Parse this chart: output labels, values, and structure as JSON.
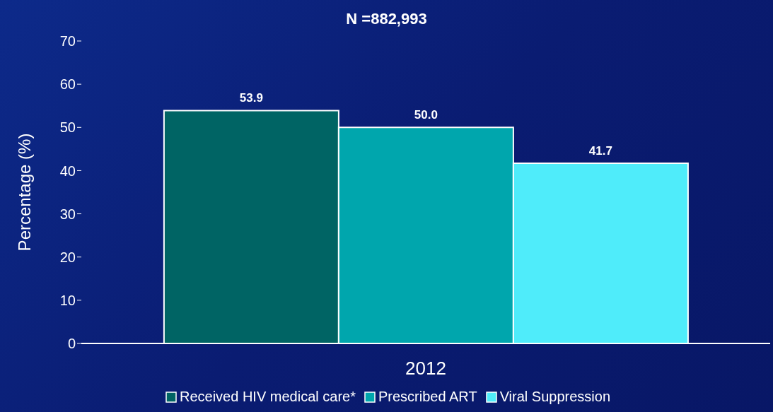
{
  "chart_data": {
    "type": "bar",
    "title": "N =882,993",
    "ylabel": "Percentage (%)",
    "categories": [
      "2012"
    ],
    "series": [
      {
        "name": "Received HIV medical care*",
        "color": "#006464",
        "values": [
          53.9
        ],
        "value_labels": [
          "53.9"
        ]
      },
      {
        "name": "Prescribed ART",
        "color": "#00a6ad",
        "values": [
          50.0
        ],
        "value_labels": [
          "50.0"
        ]
      },
      {
        "name": "Viral Suppression",
        "color": "#4fecfa",
        "values": [
          41.7
        ],
        "value_labels": [
          "41.7"
        ]
      }
    ],
    "ylim": [
      0,
      70
    ],
    "yticks": [
      0,
      10,
      20,
      30,
      40,
      50,
      60,
      70
    ],
    "grid": false,
    "legend": "bottom"
  }
}
